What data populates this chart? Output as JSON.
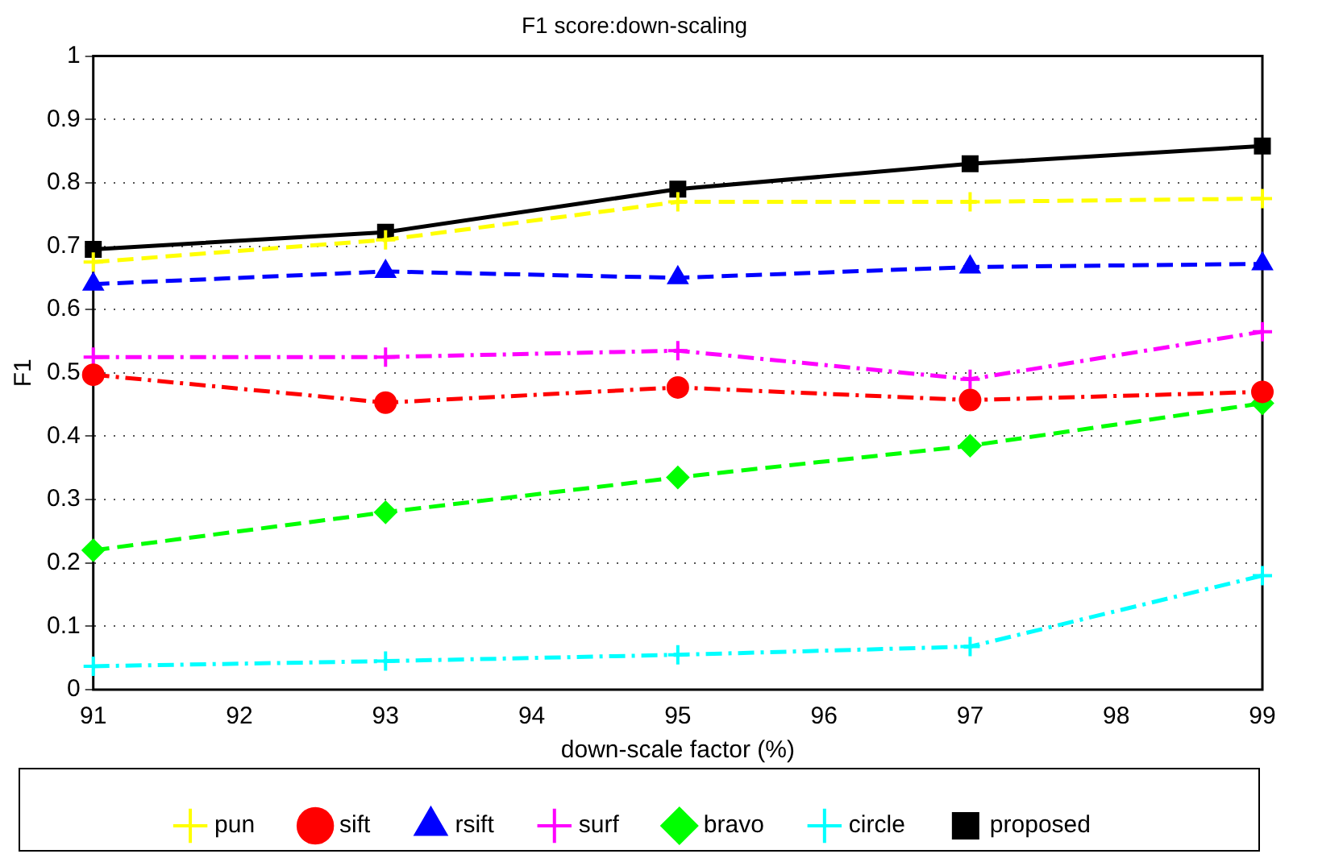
{
  "chart_data": {
    "type": "line",
    "title": "F1 score:down-scaling",
    "xlabel": "down-scale factor (%)",
    "ylabel": "F1",
    "x": [
      91,
      93,
      95,
      97,
      99
    ],
    "series": [
      {
        "name": "pun",
        "color": "#ffff00",
        "marker": "cross",
        "line_style": "dashed",
        "values": [
          0.675,
          0.71,
          0.77,
          0.77,
          0.775
        ]
      },
      {
        "name": "sift",
        "color": "#ff0000",
        "marker": "circle",
        "line_style": "dashdot",
        "values": [
          0.497,
          0.453,
          0.477,
          0.457,
          0.47
        ]
      },
      {
        "name": "rsift",
        "color": "#0000ff",
        "marker": "triangle",
        "line_style": "dashed",
        "values": [
          0.64,
          0.66,
          0.65,
          0.667,
          0.672
        ]
      },
      {
        "name": "surf",
        "color": "#ff00ff",
        "marker": "cross",
        "line_style": "dashdot",
        "values": [
          0.525,
          0.525,
          0.535,
          0.49,
          0.565
        ]
      },
      {
        "name": "bravo",
        "color": "#00ff00",
        "marker": "diamond",
        "line_style": "dashed",
        "values": [
          0.22,
          0.28,
          0.335,
          0.385,
          0.452
        ]
      },
      {
        "name": "circle",
        "color": "#00ffff",
        "marker": "cross",
        "line_style": "dashdot",
        "values": [
          0.037,
          0.045,
          0.055,
          0.068,
          0.18
        ]
      },
      {
        "name": "proposed",
        "color": "#000000",
        "marker": "square",
        "line_style": "solid",
        "values": [
          0.695,
          0.722,
          0.79,
          0.83,
          0.858
        ]
      }
    ],
    "xlim": [
      91,
      99
    ],
    "xticks": [
      91,
      92,
      93,
      94,
      95,
      96,
      97,
      98,
      99
    ],
    "ylim": [
      0,
      1
    ],
    "yticks": [
      0,
      0.1,
      0.2,
      0.3,
      0.4,
      0.5,
      0.6,
      0.7,
      0.8,
      0.9,
      1
    ],
    "grid": "y",
    "legend": "bottom"
  }
}
